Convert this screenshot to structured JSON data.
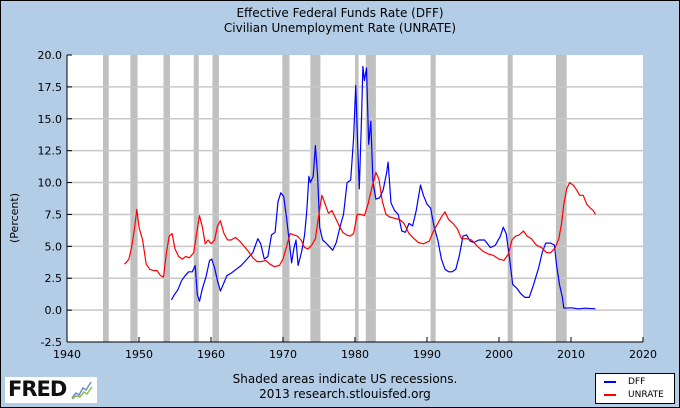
{
  "chart_data": {
    "type": "line",
    "title": "Effective Federal Funds Rate (DFF)",
    "subtitle": "Civilian Unemployment Rate (UNRATE)",
    "xlabel": "",
    "ylabel": "(Percent)",
    "xlim": [
      1940,
      2020
    ],
    "ylim": [
      -2.5,
      20.0
    ],
    "x_ticks": [
      "1940",
      "1950",
      "1960",
      "1970",
      "1980",
      "1990",
      "2000",
      "2010",
      "2020"
    ],
    "y_ticks": [
      "-2.5",
      "0.0",
      "2.5",
      "5.0",
      "7.5",
      "10.0",
      "12.5",
      "15.0",
      "17.5",
      "20.0"
    ],
    "grid": true,
    "legend_position": "bottom-right",
    "recessions": [
      [
        1945.0,
        1945.8
      ],
      [
        1948.8,
        1949.8
      ],
      [
        1953.4,
        1954.3
      ],
      [
        1957.6,
        1958.3
      ],
      [
        1960.2,
        1961.1
      ],
      [
        1969.9,
        1970.9
      ],
      [
        1973.8,
        1975.2
      ],
      [
        1980.0,
        1980.5
      ],
      [
        1981.5,
        1982.9
      ],
      [
        1990.5,
        1991.2
      ],
      [
        2001.2,
        2001.9
      ],
      [
        2007.9,
        2009.4
      ]
    ],
    "recession_color": "#c0c0c0",
    "series": [
      {
        "name": "DFF",
        "color": "#0000ff",
        "points": [
          [
            1954.5,
            0.8
          ],
          [
            1954.9,
            1.2
          ],
          [
            1955.4,
            1.6
          ],
          [
            1955.9,
            2.3
          ],
          [
            1956.4,
            2.7
          ],
          [
            1956.9,
            3.0
          ],
          [
            1957.4,
            3.0
          ],
          [
            1957.8,
            3.5
          ],
          [
            1958.1,
            1.2
          ],
          [
            1958.4,
            0.7
          ],
          [
            1958.8,
            1.7
          ],
          [
            1959.3,
            2.6
          ],
          [
            1959.8,
            3.9
          ],
          [
            1960.1,
            4.0
          ],
          [
            1960.5,
            3.3
          ],
          [
            1960.9,
            2.3
          ],
          [
            1961.3,
            1.5
          ],
          [
            1961.7,
            2.0
          ],
          [
            1962.2,
            2.7
          ],
          [
            1962.8,
            2.9
          ],
          [
            1963.5,
            3.2
          ],
          [
            1964.2,
            3.5
          ],
          [
            1965.0,
            4.0
          ],
          [
            1965.8,
            4.5
          ],
          [
            1966.5,
            5.6
          ],
          [
            1966.9,
            5.2
          ],
          [
            1967.4,
            4.0
          ],
          [
            1967.9,
            4.2
          ],
          [
            1968.4,
            5.9
          ],
          [
            1968.9,
            6.1
          ],
          [
            1969.3,
            8.5
          ],
          [
            1969.7,
            9.2
          ],
          [
            1970.1,
            8.9
          ],
          [
            1970.5,
            7.2
          ],
          [
            1970.9,
            5.2
          ],
          [
            1971.2,
            3.7
          ],
          [
            1971.5,
            4.8
          ],
          [
            1971.8,
            5.5
          ],
          [
            1972.1,
            3.5
          ],
          [
            1972.6,
            4.6
          ],
          [
            1973.0,
            5.9
          ],
          [
            1973.3,
            7.8
          ],
          [
            1973.6,
            10.5
          ],
          [
            1973.8,
            10.0
          ],
          [
            1974.2,
            10.5
          ],
          [
            1974.5,
            12.9
          ],
          [
            1974.8,
            10.5
          ],
          [
            1975.1,
            6.5
          ],
          [
            1975.5,
            5.5
          ],
          [
            1975.9,
            5.3
          ],
          [
            1976.4,
            5.0
          ],
          [
            1976.9,
            4.7
          ],
          [
            1977.4,
            5.3
          ],
          [
            1977.9,
            6.5
          ],
          [
            1978.4,
            7.5
          ],
          [
            1978.9,
            10.0
          ],
          [
            1979.4,
            10.2
          ],
          [
            1979.8,
            13.5
          ],
          [
            1980.1,
            17.6
          ],
          [
            1980.4,
            12.5
          ],
          [
            1980.6,
            9.5
          ],
          [
            1980.9,
            15.0
          ],
          [
            1981.1,
            19.1
          ],
          [
            1981.3,
            18.0
          ],
          [
            1981.6,
            19.0
          ],
          [
            1981.9,
            13.0
          ],
          [
            1982.2,
            14.8
          ],
          [
            1982.5,
            10.0
          ],
          [
            1982.9,
            8.7
          ],
          [
            1983.4,
            8.8
          ],
          [
            1983.9,
            9.4
          ],
          [
            1984.4,
            10.8
          ],
          [
            1984.6,
            11.6
          ],
          [
            1985.0,
            8.4
          ],
          [
            1985.5,
            7.8
          ],
          [
            1986.0,
            7.5
          ],
          [
            1986.5,
            6.2
          ],
          [
            1987.0,
            6.1
          ],
          [
            1987.5,
            6.8
          ],
          [
            1988.0,
            6.6
          ],
          [
            1988.5,
            7.8
          ],
          [
            1989.1,
            9.8
          ],
          [
            1989.5,
            9.0
          ],
          [
            1990.0,
            8.3
          ],
          [
            1990.5,
            8.0
          ],
          [
            1991.0,
            6.5
          ],
          [
            1991.5,
            5.5
          ],
          [
            1992.0,
            4.0
          ],
          [
            1992.5,
            3.2
          ],
          [
            1993.0,
            3.0
          ],
          [
            1993.5,
            3.0
          ],
          [
            1994.0,
            3.2
          ],
          [
            1994.5,
            4.3
          ],
          [
            1995.0,
            5.8
          ],
          [
            1995.5,
            5.9
          ],
          [
            1996.0,
            5.4
          ],
          [
            1996.5,
            5.3
          ],
          [
            1997.2,
            5.5
          ],
          [
            1998.0,
            5.5
          ],
          [
            1998.8,
            4.9
          ],
          [
            1999.5,
            5.1
          ],
          [
            2000.2,
            5.8
          ],
          [
            2000.6,
            6.5
          ],
          [
            2001.0,
            6.0
          ],
          [
            2001.5,
            3.9
          ],
          [
            2001.9,
            2.0
          ],
          [
            2002.5,
            1.7
          ],
          [
            2003.0,
            1.3
          ],
          [
            2003.6,
            1.0
          ],
          [
            2004.2,
            1.0
          ],
          [
            2004.8,
            2.0
          ],
          [
            2005.5,
            3.3
          ],
          [
            2006.0,
            4.5
          ],
          [
            2006.5,
            5.25
          ],
          [
            2007.2,
            5.25
          ],
          [
            2007.7,
            5.1
          ],
          [
            2008.0,
            3.5
          ],
          [
            2008.4,
            2.0
          ],
          [
            2008.8,
            1.0
          ],
          [
            2009.0,
            0.15
          ],
          [
            2010.0,
            0.18
          ],
          [
            2011.0,
            0.1
          ],
          [
            2012.0,
            0.15
          ],
          [
            2013.4,
            0.1
          ]
        ]
      },
      {
        "name": "UNRATE",
        "color": "#ff0000",
        "points": [
          [
            1948.0,
            3.6
          ],
          [
            1948.3,
            3.8
          ],
          [
            1948.6,
            4.0
          ],
          [
            1949.0,
            5.0
          ],
          [
            1949.4,
            6.5
          ],
          [
            1949.7,
            7.9
          ],
          [
            1950.0,
            6.5
          ],
          [
            1950.5,
            5.5
          ],
          [
            1951.0,
            3.6
          ],
          [
            1951.5,
            3.2
          ],
          [
            1952.0,
            3.1
          ],
          [
            1952.5,
            3.1
          ],
          [
            1953.0,
            2.7
          ],
          [
            1953.4,
            2.6
          ],
          [
            1953.8,
            4.5
          ],
          [
            1954.2,
            5.8
          ],
          [
            1954.6,
            6.0
          ],
          [
            1955.0,
            4.8
          ],
          [
            1955.5,
            4.2
          ],
          [
            1956.0,
            4.0
          ],
          [
            1956.5,
            4.2
          ],
          [
            1957.0,
            4.1
          ],
          [
            1957.6,
            4.5
          ],
          [
            1958.0,
            6.0
          ],
          [
            1958.4,
            7.4
          ],
          [
            1958.8,
            6.5
          ],
          [
            1959.2,
            5.2
          ],
          [
            1959.6,
            5.5
          ],
          [
            1960.0,
            5.2
          ],
          [
            1960.5,
            5.5
          ],
          [
            1960.9,
            6.6
          ],
          [
            1961.3,
            7.0
          ],
          [
            1961.8,
            6.0
          ],
          [
            1962.3,
            5.5
          ],
          [
            1962.8,
            5.5
          ],
          [
            1963.4,
            5.7
          ],
          [
            1964.0,
            5.4
          ],
          [
            1964.6,
            5.0
          ],
          [
            1965.2,
            4.6
          ],
          [
            1965.8,
            4.1
          ],
          [
            1966.4,
            3.8
          ],
          [
            1967.0,
            3.8
          ],
          [
            1967.6,
            3.9
          ],
          [
            1968.2,
            3.6
          ],
          [
            1968.8,
            3.4
          ],
          [
            1969.5,
            3.5
          ],
          [
            1970.0,
            4.0
          ],
          [
            1970.5,
            5.0
          ],
          [
            1971.0,
            6.0
          ],
          [
            1971.5,
            5.9
          ],
          [
            1972.0,
            5.8
          ],
          [
            1972.5,
            5.5
          ],
          [
            1973.0,
            4.9
          ],
          [
            1973.5,
            4.8
          ],
          [
            1974.0,
            5.1
          ],
          [
            1974.5,
            5.6
          ],
          [
            1974.9,
            7.2
          ],
          [
            1975.4,
            9.0
          ],
          [
            1975.8,
            8.4
          ],
          [
            1976.3,
            7.6
          ],
          [
            1976.8,
            7.8
          ],
          [
            1977.3,
            7.2
          ],
          [
            1977.8,
            6.6
          ],
          [
            1978.3,
            6.1
          ],
          [
            1978.8,
            5.9
          ],
          [
            1979.3,
            5.8
          ],
          [
            1979.8,
            6.0
          ],
          [
            1980.3,
            7.5
          ],
          [
            1980.8,
            7.5
          ],
          [
            1981.3,
            7.4
          ],
          [
            1981.8,
            8.3
          ],
          [
            1982.3,
            9.5
          ],
          [
            1982.9,
            10.8
          ],
          [
            1983.3,
            10.3
          ],
          [
            1983.8,
            8.5
          ],
          [
            1984.3,
            7.5
          ],
          [
            1984.8,
            7.3
          ],
          [
            1985.5,
            7.2
          ],
          [
            1986.2,
            7.1
          ],
          [
            1986.8,
            6.8
          ],
          [
            1987.5,
            6.0
          ],
          [
            1988.2,
            5.6
          ],
          [
            1988.8,
            5.3
          ],
          [
            1989.5,
            5.2
          ],
          [
            1990.3,
            5.4
          ],
          [
            1990.9,
            6.2
          ],
          [
            1991.5,
            6.8
          ],
          [
            1992.0,
            7.3
          ],
          [
            1992.5,
            7.7
          ],
          [
            1993.0,
            7.1
          ],
          [
            1993.6,
            6.8
          ],
          [
            1994.2,
            6.4
          ],
          [
            1994.8,
            5.6
          ],
          [
            1995.5,
            5.6
          ],
          [
            1996.2,
            5.5
          ],
          [
            1997.0,
            5.0
          ],
          [
            1997.8,
            4.6
          ],
          [
            1998.5,
            4.4
          ],
          [
            1999.2,
            4.3
          ],
          [
            2000.0,
            4.0
          ],
          [
            2000.7,
            3.9
          ],
          [
            2001.3,
            4.4
          ],
          [
            2001.8,
            5.5
          ],
          [
            2002.3,
            5.8
          ],
          [
            2002.8,
            5.9
          ],
          [
            2003.4,
            6.2
          ],
          [
            2003.9,
            5.8
          ],
          [
            2004.5,
            5.6
          ],
          [
            2005.2,
            5.1
          ],
          [
            2005.9,
            4.9
          ],
          [
            2006.6,
            4.5
          ],
          [
            2007.2,
            4.5
          ],
          [
            2007.8,
            4.9
          ],
          [
            2008.3,
            5.6
          ],
          [
            2008.7,
            6.8
          ],
          [
            2009.0,
            8.3
          ],
          [
            2009.4,
            9.5
          ],
          [
            2009.8,
            10.0
          ],
          [
            2010.3,
            9.8
          ],
          [
            2010.8,
            9.4
          ],
          [
            2011.2,
            9.0
          ],
          [
            2011.7,
            9.0
          ],
          [
            2012.2,
            8.3
          ],
          [
            2012.7,
            8.0
          ],
          [
            2013.1,
            7.8
          ],
          [
            2013.4,
            7.5
          ]
        ]
      }
    ],
    "note_line1": "Shaded areas indicate US recessions.",
    "note_line2": "2013 research.stlouisfed.org",
    "logo_text": "FRED"
  }
}
